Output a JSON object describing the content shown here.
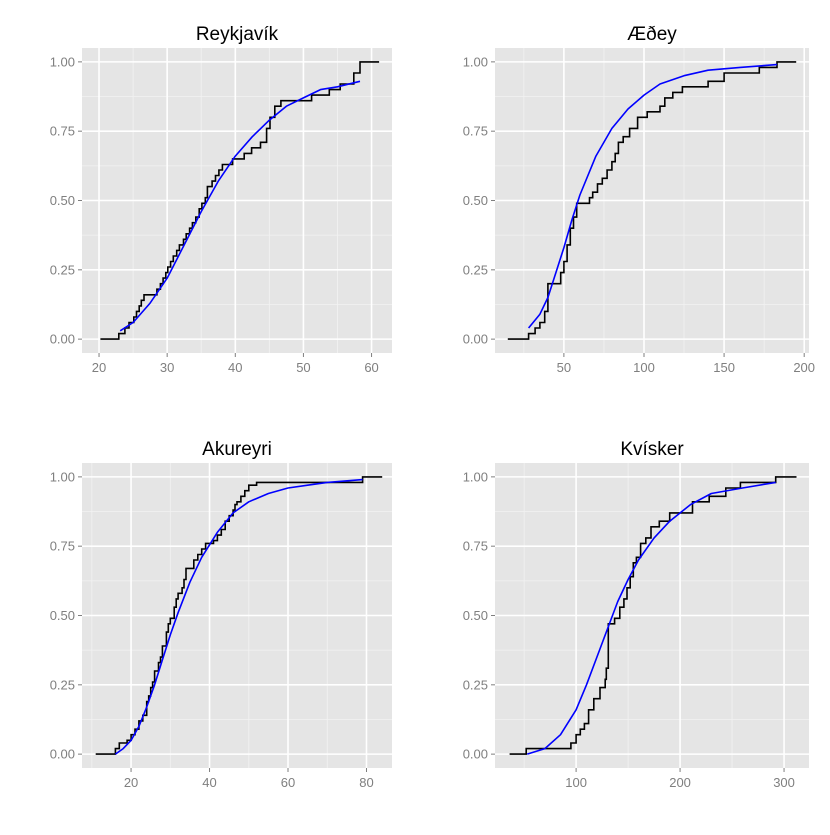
{
  "colors": {
    "panel_bg": "#e5e5e5",
    "grid_major": "#ffffff",
    "grid_minor": "#f2f2f2",
    "ecdf": "#000000",
    "fit": "#0000ff",
    "tick_text": "#7f7f7f"
  },
  "chart_data": [
    {
      "type": "line",
      "title": "Reykjavík",
      "xlim": [
        17.5,
        63
      ],
      "ylim": [
        -0.05,
        1.05
      ],
      "xticks": [
        20,
        30,
        40,
        50,
        60
      ],
      "yticks": [
        0.0,
        0.25,
        0.5,
        0.75,
        1.0
      ],
      "ytick_labels": [
        "0.00",
        "0.25",
        "0.50",
        "0.75",
        "1.00"
      ],
      "grid": true,
      "series": [
        {
          "kind": "ecdf-step",
          "x": [
            20.2,
            22.9,
            23.8,
            24.4,
            25.1,
            25.5,
            25.9,
            26.2,
            26.6,
            26.9,
            28.5,
            29.0,
            29.4,
            29.8,
            30.1,
            30.5,
            30.9,
            31.4,
            31.8,
            32.4,
            32.8,
            33.3,
            33.7,
            34.2,
            34.7,
            35.1,
            35.6,
            35.9,
            36.6,
            37.1,
            37.6,
            38.1,
            38.6,
            39.6,
            41.3,
            42.4,
            43.7,
            44.6,
            45.1,
            45.8,
            46.7,
            48.6,
            51.2,
            51.5,
            53.8,
            55.4,
            57.4,
            58.3,
            61.1
          ],
          "y": [
            0.0,
            0.02,
            0.04,
            0.06,
            0.08,
            0.1,
            0.12,
            0.14,
            0.16,
            0.16,
            0.18,
            0.2,
            0.22,
            0.24,
            0.26,
            0.28,
            0.3,
            0.32,
            0.34,
            0.36,
            0.38,
            0.4,
            0.42,
            0.44,
            0.47,
            0.49,
            0.51,
            0.55,
            0.57,
            0.59,
            0.61,
            0.63,
            0.63,
            0.65,
            0.67,
            0.69,
            0.71,
            0.76,
            0.8,
            0.84,
            0.86,
            0.86,
            0.88,
            0.88,
            0.9,
            0.92,
            0.96,
            1.0,
            1.0
          ]
        },
        {
          "kind": "fitted-cdf",
          "x": [
            23.1,
            25,
            27.5,
            30,
            32.5,
            35,
            37.5,
            40,
            42.5,
            45,
            47.5,
            50,
            52.5,
            55,
            58.3
          ],
          "y": [
            0.03,
            0.06,
            0.13,
            0.22,
            0.34,
            0.46,
            0.57,
            0.66,
            0.73,
            0.79,
            0.84,
            0.87,
            0.9,
            0.91,
            0.93
          ]
        }
      ]
    },
    {
      "type": "line",
      "title": "Æðey",
      "xlim": [
        7,
        203
      ],
      "ylim": [
        -0.05,
        1.05
      ],
      "xticks": [
        50,
        100,
        150,
        200
      ],
      "yticks": [
        0.0,
        0.25,
        0.5,
        0.75,
        1.0
      ],
      "ytick_labels": [
        "0.00",
        "0.25",
        "0.50",
        "0.75",
        "1.00"
      ],
      "grid": true,
      "series": [
        {
          "kind": "ecdf-step",
          "x": [
            15,
            28,
            32,
            35,
            38,
            40,
            48,
            50,
            52,
            54,
            56,
            58,
            60,
            66,
            68,
            71,
            74,
            77,
            80,
            82,
            84,
            87,
            91,
            96,
            102,
            110,
            113,
            118,
            124,
            140,
            150,
            160,
            172,
            183,
            195
          ],
          "y": [
            0.0,
            0.02,
            0.04,
            0.06,
            0.1,
            0.2,
            0.24,
            0.28,
            0.34,
            0.4,
            0.44,
            0.49,
            0.49,
            0.51,
            0.53,
            0.56,
            0.58,
            0.61,
            0.64,
            0.67,
            0.71,
            0.73,
            0.76,
            0.8,
            0.82,
            0.84,
            0.87,
            0.89,
            0.91,
            0.93,
            0.96,
            0.96,
            0.98,
            1.0,
            1.0
          ]
        },
        {
          "kind": "fitted-cdf",
          "x": [
            28,
            35,
            40,
            45,
            50,
            55,
            60,
            70,
            80,
            90,
            100,
            110,
            125,
            140,
            160,
            183
          ],
          "y": [
            0.04,
            0.09,
            0.15,
            0.24,
            0.33,
            0.43,
            0.52,
            0.66,
            0.76,
            0.83,
            0.88,
            0.92,
            0.95,
            0.97,
            0.98,
            0.99
          ]
        }
      ]
    },
    {
      "type": "line",
      "title": "Akureyri",
      "xlim": [
        7.5,
        86.5
      ],
      "ylim": [
        -0.05,
        1.05
      ],
      "xticks": [
        20,
        40,
        60,
        80
      ],
      "yticks": [
        0.0,
        0.25,
        0.5,
        0.75,
        1.0
      ],
      "ytick_labels": [
        "0.00",
        "0.25",
        "0.50",
        "0.75",
        "1.00"
      ],
      "grid": true,
      "series": [
        {
          "kind": "ecdf-step",
          "x": [
            11,
            16,
            17,
            19,
            20,
            21,
            22,
            23,
            24,
            24.5,
            25,
            25.5,
            26,
            27,
            27.5,
            28,
            29,
            29.5,
            30,
            31,
            31.5,
            32,
            33,
            33.5,
            34,
            34.5,
            36,
            37,
            38,
            39,
            41,
            42,
            43,
            44,
            45,
            46,
            46.5,
            47,
            48,
            49,
            50,
            52,
            60,
            79,
            84
          ],
          "y": [
            0.0,
            0.02,
            0.04,
            0.05,
            0.07,
            0.09,
            0.12,
            0.14,
            0.19,
            0.21,
            0.24,
            0.26,
            0.3,
            0.33,
            0.35,
            0.39,
            0.44,
            0.47,
            0.49,
            0.53,
            0.56,
            0.58,
            0.6,
            0.63,
            0.67,
            0.67,
            0.7,
            0.72,
            0.74,
            0.76,
            0.77,
            0.79,
            0.81,
            0.84,
            0.86,
            0.88,
            0.9,
            0.91,
            0.93,
            0.95,
            0.97,
            0.98,
            0.98,
            1.0,
            1.0
          ]
        },
        {
          "kind": "fitted-cdf",
          "x": [
            16,
            18,
            20,
            22,
            24,
            26,
            28,
            30,
            32,
            35,
            38,
            42,
            46,
            50,
            55,
            60,
            65,
            70,
            79
          ],
          "y": [
            0.0,
            0.02,
            0.05,
            0.1,
            0.17,
            0.25,
            0.34,
            0.43,
            0.51,
            0.62,
            0.71,
            0.8,
            0.87,
            0.91,
            0.94,
            0.96,
            0.97,
            0.98,
            0.99
          ]
        }
      ]
    },
    {
      "type": "line",
      "title": "Kvísker",
      "xlim": [
        22,
        324
      ],
      "ylim": [
        -0.05,
        1.05
      ],
      "xticks": [
        100,
        200,
        300
      ],
      "yticks": [
        0.0,
        0.25,
        0.5,
        0.75,
        1.0
      ],
      "ytick_labels": [
        "0.00",
        "0.25",
        "0.50",
        "0.75",
        "1.00"
      ],
      "grid": true,
      "series": [
        {
          "kind": "ecdf-step",
          "x": [
            36,
            52,
            95,
            100,
            104,
            108,
            112,
            117,
            123,
            128,
            129,
            131,
            137,
            142,
            146,
            149,
            152,
            155,
            158,
            162,
            167,
            172,
            180,
            190,
            212,
            228,
            244,
            258,
            292,
            312
          ],
          "y": [
            0.0,
            0.02,
            0.04,
            0.07,
            0.09,
            0.11,
            0.16,
            0.2,
            0.24,
            0.27,
            0.31,
            0.47,
            0.49,
            0.53,
            0.56,
            0.6,
            0.64,
            0.69,
            0.71,
            0.76,
            0.78,
            0.82,
            0.84,
            0.87,
            0.91,
            0.93,
            0.96,
            0.98,
            1.0,
            1.0
          ]
        },
        {
          "kind": "fitted-cdf",
          "x": [
            53,
            70,
            85,
            100,
            110,
            120,
            130,
            140,
            150,
            160,
            175,
            190,
            210,
            230,
            260,
            292
          ],
          "y": [
            0.0,
            0.02,
            0.07,
            0.16,
            0.25,
            0.35,
            0.45,
            0.55,
            0.63,
            0.7,
            0.78,
            0.84,
            0.9,
            0.94,
            0.96,
            0.98
          ]
        }
      ]
    }
  ]
}
